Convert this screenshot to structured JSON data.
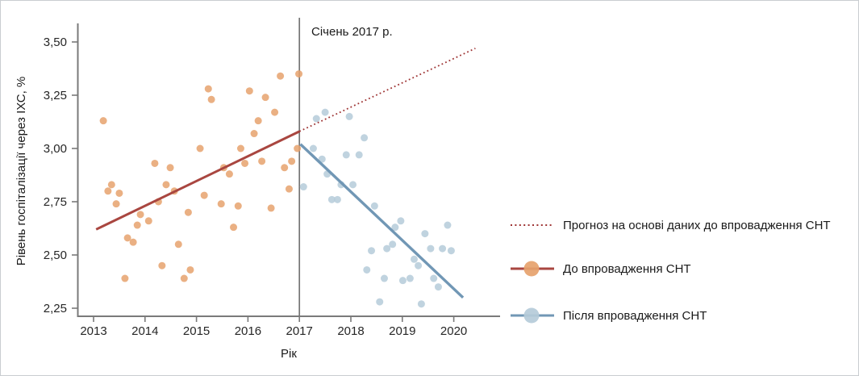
{
  "chart_data": {
    "type": "scatter",
    "annotation": "Січень 2017 р.",
    "xlabel": "Рік",
    "ylabel": "Рівень госпіталізації через ІХС, %",
    "x_ticks": [
      2013,
      2014,
      2015,
      2016,
      2017,
      2018,
      2019,
      2020
    ],
    "x_tick_labels": [
      "2013",
      "2014",
      "2015",
      "2016",
      "2017",
      "2018",
      "2019",
      "2020"
    ],
    "y_ticks": [
      2.25,
      2.5,
      2.75,
      3.0,
      3.25,
      3.5
    ],
    "y_tick_labels": [
      "2,25",
      "2,50",
      "2,75",
      "3,00",
      "3,25",
      "3,50"
    ],
    "xlim": [
      2012.7,
      2020.9
    ],
    "ylim": [
      2.2,
      3.59
    ],
    "grid": false,
    "legend_position": "right",
    "vline_x": 2017,
    "colors": {
      "before_points": "#E6A26D",
      "before_line": "#A94640",
      "forecast_line": "#9E3434",
      "after_points": "#B5CBD9",
      "after_line": "#7197B5",
      "reference_line": "#757575",
      "axis": "#7a7a7a",
      "text": "#262626"
    },
    "series": [
      {
        "name": "До впровадження СНТ",
        "type": "scatter",
        "points": [
          [
            2013.19,
            3.13
          ],
          [
            2013.28,
            2.8
          ],
          [
            2013.35,
            2.83
          ],
          [
            2013.44,
            2.74
          ],
          [
            2013.5,
            2.79
          ],
          [
            2013.61,
            2.39
          ],
          [
            2013.66,
            2.58
          ],
          [
            2013.77,
            2.56
          ],
          [
            2013.85,
            2.64
          ],
          [
            2013.91,
            2.69
          ],
          [
            2014.07,
            2.66
          ],
          [
            2014.19,
            2.93
          ],
          [
            2014.26,
            2.75
          ],
          [
            2014.33,
            2.45
          ],
          [
            2014.41,
            2.83
          ],
          [
            2014.49,
            2.91
          ],
          [
            2014.57,
            2.8
          ],
          [
            2014.65,
            2.55
          ],
          [
            2014.76,
            2.39
          ],
          [
            2014.84,
            2.7
          ],
          [
            2014.88,
            2.43
          ],
          [
            2015.07,
            3.0
          ],
          [
            2015.15,
            2.78
          ],
          [
            2015.23,
            3.28
          ],
          [
            2015.29,
            3.23
          ],
          [
            2015.48,
            2.74
          ],
          [
            2015.53,
            2.91
          ],
          [
            2015.64,
            2.88
          ],
          [
            2015.72,
            2.63
          ],
          [
            2015.81,
            2.73
          ],
          [
            2015.86,
            3.0
          ],
          [
            2015.94,
            2.93
          ],
          [
            2016.03,
            3.27
          ],
          [
            2016.12,
            3.07
          ],
          [
            2016.2,
            3.13
          ],
          [
            2016.27,
            2.94
          ],
          [
            2016.34,
            3.24
          ],
          [
            2016.45,
            2.72
          ],
          [
            2016.52,
            3.17
          ],
          [
            2016.63,
            3.34
          ],
          [
            2016.71,
            2.91
          ],
          [
            2016.8,
            2.81
          ],
          [
            2016.85,
            2.94
          ],
          [
            2016.96,
            3.0
          ],
          [
            2016.99,
            3.35
          ]
        ],
        "trend": {
          "from": [
            2013.05,
            2.62
          ],
          "to": [
            2017.0,
            3.08
          ]
        }
      },
      {
        "name": "Після впровадження СНТ",
        "type": "scatter",
        "points": [
          [
            2017.08,
            2.82
          ],
          [
            2017.27,
            3.0
          ],
          [
            2017.33,
            3.14
          ],
          [
            2017.44,
            2.95
          ],
          [
            2017.5,
            3.17
          ],
          [
            2017.54,
            2.88
          ],
          [
            2017.63,
            2.76
          ],
          [
            2017.74,
            2.76
          ],
          [
            2017.81,
            2.83
          ],
          [
            2017.91,
            2.97
          ],
          [
            2017.97,
            3.15
          ],
          [
            2018.04,
            2.83
          ],
          [
            2018.16,
            2.97
          ],
          [
            2018.26,
            3.05
          ],
          [
            2018.31,
            2.43
          ],
          [
            2018.4,
            2.52
          ],
          [
            2018.46,
            2.73
          ],
          [
            2018.56,
            2.28
          ],
          [
            2018.65,
            2.39
          ],
          [
            2018.7,
            2.53
          ],
          [
            2018.81,
            2.55
          ],
          [
            2018.86,
            2.63
          ],
          [
            2018.97,
            2.66
          ],
          [
            2019.01,
            2.38
          ],
          [
            2019.15,
            2.39
          ],
          [
            2019.23,
            2.48
          ],
          [
            2019.31,
            2.45
          ],
          [
            2019.37,
            2.27
          ],
          [
            2019.44,
            2.6
          ],
          [
            2019.55,
            2.53
          ],
          [
            2019.61,
            2.39
          ],
          [
            2019.7,
            2.35
          ],
          [
            2019.78,
            2.53
          ],
          [
            2019.88,
            2.64
          ],
          [
            2019.95,
            2.52
          ]
        ],
        "trend": {
          "from": [
            2017.02,
            3.02
          ],
          "to": [
            2020.18,
            2.3
          ]
        }
      },
      {
        "name": "Прогноз на основі даних до впровадження СНТ",
        "type": "line",
        "style": "dotted",
        "from": [
          2017.0,
          3.08
        ],
        "to": [
          2020.42,
          3.47
        ]
      }
    ],
    "legend": [
      {
        "label": "Прогноз на основі даних до впровадження СНТ",
        "marker": "dotted-line"
      },
      {
        "label": "До впровадження СНТ",
        "marker": "line-with-dot"
      },
      {
        "label": "Після впровадження СНТ",
        "marker": "line-with-dot"
      }
    ]
  }
}
